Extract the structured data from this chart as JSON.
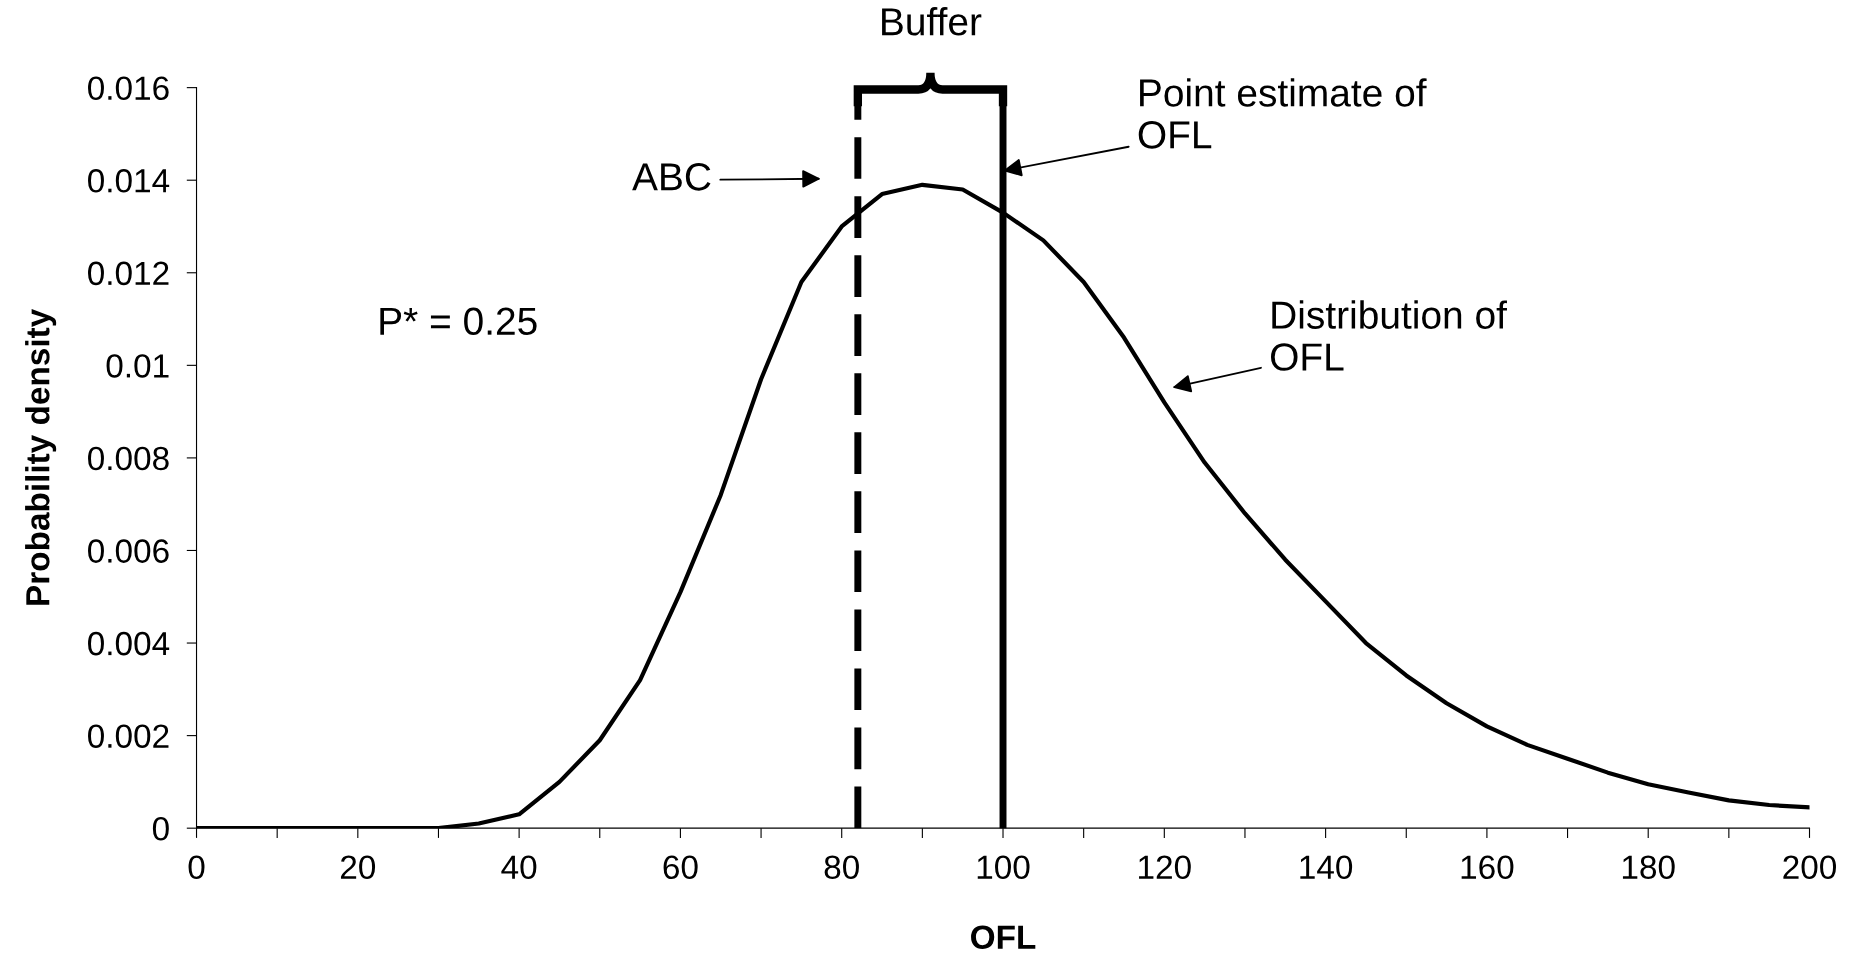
{
  "chart_data": {
    "type": "line",
    "xlabel": "OFL",
    "ylabel": "Probability density",
    "x": [
      0,
      5,
      10,
      15,
      20,
      25,
      30,
      35,
      40,
      45,
      50,
      55,
      60,
      65,
      70,
      75,
      80,
      85,
      90,
      95,
      100,
      105,
      110,
      115,
      120,
      125,
      130,
      135,
      140,
      145,
      150,
      155,
      160,
      165,
      170,
      175,
      180,
      185,
      190,
      195,
      200
    ],
    "series": [
      {
        "color": "#000000",
        "values": [
          0,
          0,
          0,
          0,
          0,
          0,
          0,
          0.0001,
          0.0003,
          0.001,
          0.0019,
          0.0032,
          0.0051,
          0.0072,
          0.0097,
          0.0118,
          0.013,
          0.0137,
          0.0139,
          0.0138,
          0.0133,
          0.0127,
          0.0118,
          0.0106,
          0.0092,
          0.0079,
          0.0068,
          0.0058,
          0.0049,
          0.004,
          0.0033,
          0.0027,
          0.0022,
          0.0018,
          0.0015,
          0.0012,
          0.00095,
          0.00077,
          0.0006,
          0.0005,
          0.00045
        ]
      }
    ],
    "xlim": [
      0,
      200
    ],
    "ylim": [
      0,
      0.016
    ],
    "xticks": [
      0,
      {
        "value": 10,
        "label": null
      },
      20,
      {
        "value": 30,
        "label": null
      },
      40,
      {
        "value": 50,
        "label": null
      },
      60,
      {
        "value": 70,
        "label": null
      },
      80,
      {
        "value": 90,
        "label": null
      },
      100,
      {
        "value": 110,
        "label": null
      },
      120,
      {
        "value": 130,
        "label": null
      },
      140,
      {
        "value": 150,
        "label": null
      },
      160,
      {
        "value": 170,
        "label": null
      },
      180,
      {
        "value": 190,
        "label": null
      },
      200
    ],
    "yticks": [
      0,
      {
        "value": 0.002,
        "label": "0.002"
      },
      {
        "value": 0.004,
        "label": "0.004"
      },
      {
        "value": 0.006,
        "label": "0.006"
      },
      {
        "value": 0.008,
        "label": "0.008"
      },
      {
        "value": 0.01,
        "label": "0.01"
      },
      {
        "value": 0.012,
        "label": "0.012"
      },
      {
        "value": 0.014,
        "label": "0.014"
      },
      {
        "value": 0.016,
        "label": "0.016"
      }
    ],
    "ref_lines": [
      {
        "axis": "x",
        "value": 82,
        "color": "#000000",
        "line_style": "dashed"
      },
      {
        "axis": "x",
        "value": 100,
        "color": "#000000",
        "line_style": "solid"
      }
    ],
    "annotations": [
      "Buffer",
      "ABC",
      {
        "text": "Point estimate of\nOFL",
        "x": 100,
        "y": 0.0142
      },
      "Distribution of\nOFL",
      "P* = 0.25"
    ],
    "grid": false,
    "marker": "none",
    "line_style": "solid"
  }
}
